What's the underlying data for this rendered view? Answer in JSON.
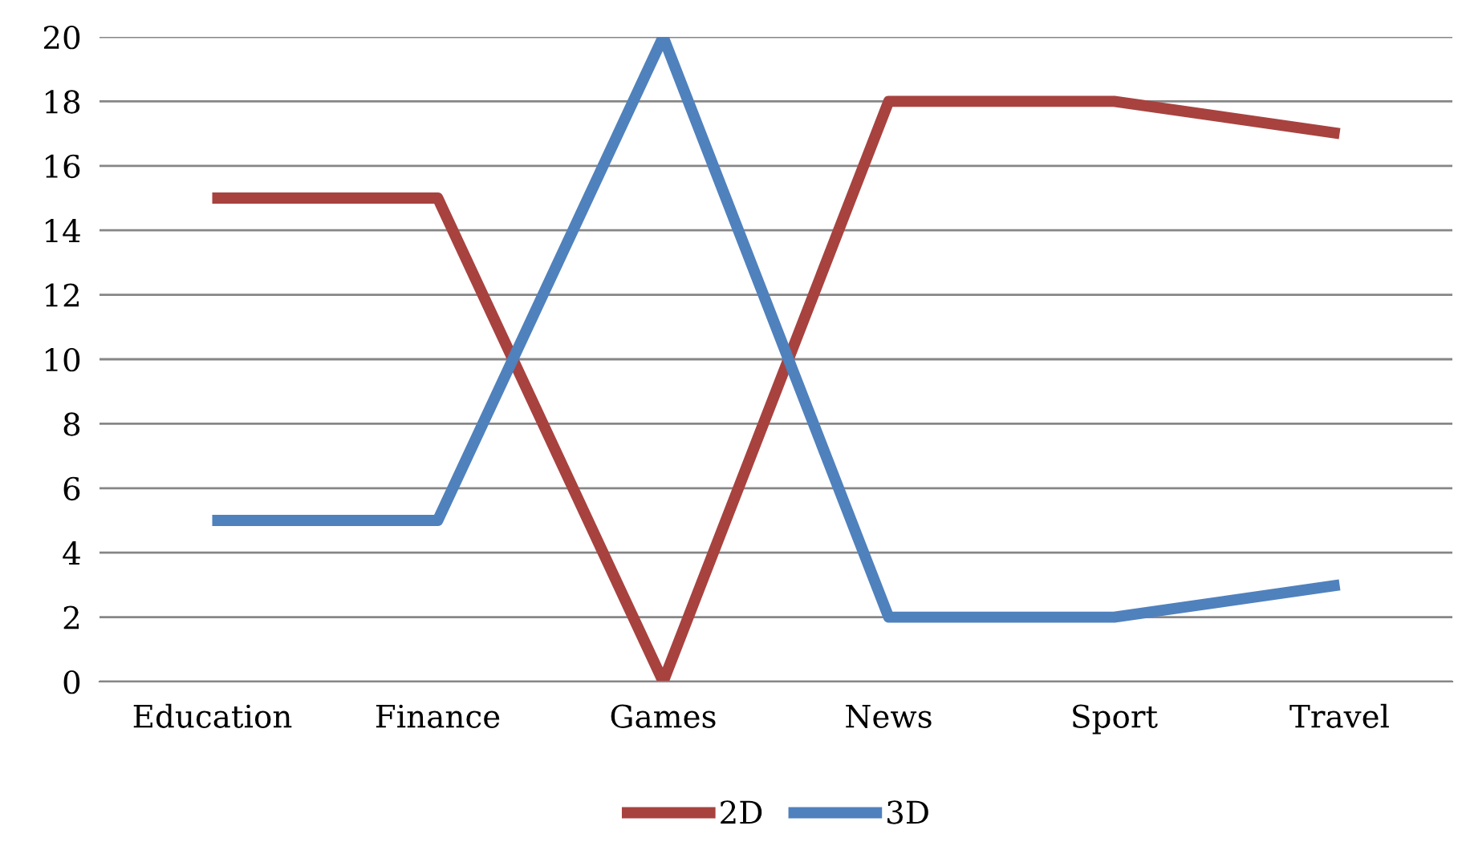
{
  "chart_data": {
    "type": "line",
    "categories": [
      "Education",
      "Finance",
      "Games",
      "News",
      "Sport",
      "Travel"
    ],
    "series": [
      {
        "name": "2D",
        "color": "#a8423f",
        "values": [
          15,
          15,
          0,
          18,
          18,
          17
        ]
      },
      {
        "name": "3D",
        "color": "#4f81bd",
        "values": [
          5,
          5,
          20,
          2,
          2,
          3
        ]
      }
    ],
    "ylim": [
      0,
      20
    ],
    "yticks": [
      0,
      2,
      4,
      6,
      8,
      10,
      12,
      14,
      16,
      18,
      20
    ],
    "grid": "y",
    "legend": "bottom",
    "marker": "none",
    "line_style": "solid"
  }
}
